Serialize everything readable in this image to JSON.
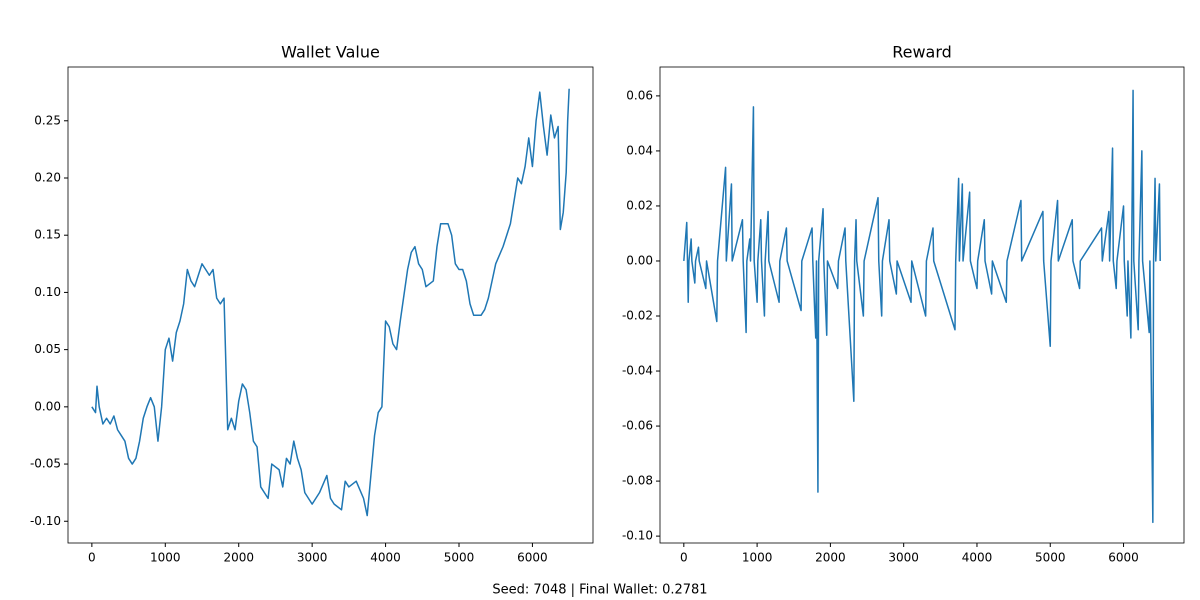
{
  "chart_data": [
    {
      "type": "line",
      "title": "Wallet Value",
      "color": "#1f77b4",
      "x": [
        0,
        50,
        70,
        100,
        150,
        200,
        250,
        300,
        350,
        400,
        450,
        500,
        550,
        600,
        650,
        700,
        750,
        800,
        850,
        900,
        950,
        1000,
        1050,
        1100,
        1150,
        1200,
        1250,
        1300,
        1350,
        1400,
        1450,
        1500,
        1550,
        1600,
        1650,
        1700,
        1750,
        1800,
        1850,
        1900,
        1950,
        2000,
        2050,
        2100,
        2150,
        2200,
        2250,
        2300,
        2400,
        2450,
        2550,
        2600,
        2650,
        2700,
        2750,
        2800,
        2850,
        2900,
        3000,
        3100,
        3200,
        3250,
        3300,
        3400,
        3450,
        3500,
        3600,
        3700,
        3750,
        3800,
        3850,
        3900,
        3950,
        4000,
        4050,
        4100,
        4150,
        4200,
        4300,
        4350,
        4400,
        4450,
        4500,
        4550,
        4650,
        4700,
        4750,
        4850,
        4900,
        4950,
        5000,
        5050,
        5100,
        5150,
        5200,
        5300,
        5350,
        5400,
        5450,
        5500,
        5600,
        5700,
        5750,
        5800,
        5850,
        5900,
        5950,
        6000,
        6050,
        6100,
        6150,
        6200,
        6250,
        6300,
        6350,
        6380,
        6420,
        6460,
        6480,
        6500
      ],
      "values": [
        0.0,
        -0.005,
        0.018,
        0.0,
        -0.015,
        -0.01,
        -0.015,
        -0.008,
        -0.02,
        -0.025,
        -0.03,
        -0.045,
        -0.05,
        -0.045,
        -0.03,
        -0.01,
        0.0,
        0.008,
        0.0,
        -0.03,
        0.0,
        0.05,
        0.06,
        0.04,
        0.065,
        0.075,
        0.09,
        0.12,
        0.11,
        0.105,
        0.115,
        0.125,
        0.12,
        0.115,
        0.12,
        0.095,
        0.09,
        0.095,
        -0.02,
        -0.01,
        -0.02,
        0.005,
        0.02,
        0.015,
        -0.005,
        -0.03,
        -0.035,
        -0.07,
        -0.08,
        -0.05,
        -0.055,
        -0.07,
        -0.045,
        -0.05,
        -0.03,
        -0.045,
        -0.055,
        -0.075,
        -0.085,
        -0.075,
        -0.06,
        -0.08,
        -0.085,
        -0.09,
        -0.065,
        -0.07,
        -0.065,
        -0.08,
        -0.095,
        -0.06,
        -0.025,
        -0.005,
        0.0,
        0.075,
        0.07,
        0.055,
        0.05,
        0.075,
        0.12,
        0.135,
        0.14,
        0.125,
        0.12,
        0.105,
        0.11,
        0.14,
        0.16,
        0.16,
        0.15,
        0.125,
        0.12,
        0.12,
        0.11,
        0.09,
        0.08,
        0.08,
        0.085,
        0.095,
        0.11,
        0.125,
        0.14,
        0.16,
        0.18,
        0.2,
        0.195,
        0.21,
        0.235,
        0.21,
        0.25,
        0.275,
        0.245,
        0.22,
        0.255,
        0.235,
        0.245,
        0.155,
        0.17,
        0.205,
        0.25,
        0.278
      ],
      "xlim": [
        -325,
        6825
      ],
      "xticks": [
        0,
        1000,
        2000,
        3000,
        4000,
        5000,
        6000
      ],
      "ylim": [
        -0.119,
        0.297
      ],
      "yticks": [
        {
          "value": -0.1,
          "label": "-0.10"
        },
        {
          "value": -0.05,
          "label": "-0.05"
        },
        {
          "value": 0.0,
          "label": "0.00"
        },
        {
          "value": 0.05,
          "label": "0.05"
        },
        {
          "value": 0.1,
          "label": "0.10"
        },
        {
          "value": 0.15,
          "label": "0.15"
        },
        {
          "value": 0.2,
          "label": "0.20"
        },
        {
          "value": 0.25,
          "label": "0.25"
        }
      ]
    },
    {
      "type": "line",
      "title": "Reward",
      "color": "#1f77b4",
      "x": [
        0,
        40,
        50,
        60,
        70,
        100,
        110,
        150,
        160,
        200,
        210,
        300,
        310,
        450,
        460,
        570,
        580,
        650,
        660,
        800,
        810,
        850,
        860,
        900,
        910,
        950,
        960,
        1000,
        1010,
        1050,
        1060,
        1100,
        1110,
        1150,
        1160,
        1300,
        1310,
        1400,
        1410,
        1600,
        1610,
        1750,
        1760,
        1800,
        1810,
        1830,
        1840,
        1900,
        1910,
        1950,
        1960,
        2100,
        2110,
        2200,
        2210,
        2320,
        2330,
        2350,
        2360,
        2450,
        2460,
        2650,
        2660,
        2700,
        2710,
        2800,
        2810,
        2900,
        2910,
        3100,
        3110,
        3300,
        3310,
        3400,
        3410,
        3700,
        3710,
        3750,
        3760,
        3800,
        3810,
        3900,
        3910,
        4000,
        4010,
        4100,
        4110,
        4200,
        4210,
        4400,
        4410,
        4600,
        4610,
        4900,
        4910,
        5000,
        5010,
        5100,
        5110,
        5300,
        5310,
        5400,
        5410,
        5700,
        5710,
        5800,
        5810,
        5850,
        5860,
        5900,
        5910,
        6000,
        6010,
        6050,
        6060,
        6100,
        6110,
        6130,
        6140,
        6200,
        6210,
        6250,
        6260,
        6350,
        6360,
        6400,
        6410,
        6430,
        6440,
        6490,
        6500
      ],
      "values": [
        0,
        0.014,
        0,
        -0.015,
        0,
        0.008,
        0,
        -0.008,
        0,
        0.005,
        0,
        -0.01,
        0,
        -0.022,
        0,
        0.034,
        0,
        0.028,
        0,
        0.015,
        0,
        -0.026,
        0,
        0.008,
        0,
        0.056,
        0,
        -0.015,
        0,
        0.015,
        0,
        -0.02,
        0,
        0.018,
        0,
        -0.015,
        0,
        0.012,
        0,
        -0.018,
        0,
        0.012,
        0,
        -0.028,
        0,
        -0.084,
        0,
        0.019,
        0,
        -0.027,
        0,
        -0.01,
        0,
        0.012,
        0,
        -0.051,
        0,
        0.015,
        0,
        -0.02,
        0,
        0.023,
        0,
        -0.02,
        0,
        0.015,
        0,
        -0.012,
        0,
        -0.015,
        0,
        -0.02,
        0,
        0.012,
        0,
        -0.025,
        0,
        0.03,
        0,
        0.028,
        0,
        0.025,
        0,
        -0.01,
        0,
        0.015,
        0,
        -0.012,
        0,
        -0.015,
        0,
        0.022,
        0,
        0.018,
        0,
        -0.031,
        0,
        0.022,
        0,
        0.015,
        0,
        -0.01,
        0,
        0.012,
        0,
        0.018,
        0,
        0.041,
        0,
        -0.01,
        0,
        0.02,
        0,
        -0.02,
        0,
        -0.028,
        0,
        0.062,
        0,
        -0.025,
        0,
        0.04,
        0,
        -0.026,
        0,
        -0.095,
        0,
        0.03,
        0,
        0.028,
        0
      ],
      "xlim": [
        -325,
        6825
      ],
      "xticks": [
        0,
        1000,
        2000,
        3000,
        4000,
        5000,
        6000
      ],
      "ylim": [
        -0.1025,
        0.0705
      ],
      "yticks": [
        {
          "value": -0.1,
          "label": "-0.10"
        },
        {
          "value": -0.08,
          "label": "-0.08"
        },
        {
          "value": -0.06,
          "label": "-0.06"
        },
        {
          "value": -0.04,
          "label": "-0.04"
        },
        {
          "value": -0.02,
          "label": "-0.02"
        },
        {
          "value": 0.0,
          "label": "0.00"
        },
        {
          "value": 0.02,
          "label": "0.02"
        },
        {
          "value": 0.04,
          "label": "0.04"
        },
        {
          "value": 0.06,
          "label": "0.06"
        }
      ]
    }
  ],
  "footer": "Seed: 7048 | Final Wallet: 0.2781"
}
